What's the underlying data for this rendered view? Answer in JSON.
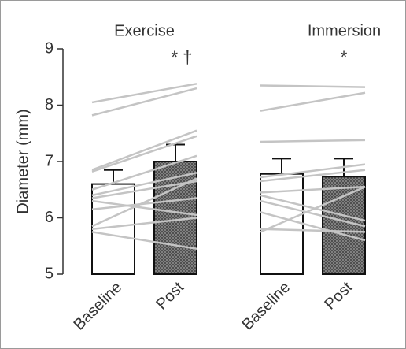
{
  "chart_data": {
    "type": "bar",
    "y_label": "Diameter (mm)",
    "ylim": [
      5,
      9
    ],
    "yticks": [
      5,
      6,
      7,
      8,
      9
    ],
    "groups": [
      "Exercise",
      "Immersion"
    ],
    "categories": [
      "Baseline",
      "Post",
      "Baseline",
      "Post"
    ],
    "values": [
      6.6,
      7.0,
      6.78,
      6.73
    ],
    "errors": [
      0.25,
      0.3,
      0.27,
      0.32
    ],
    "colors": [
      "#ffffff",
      "#8a8a8a",
      "#ffffff",
      "#8a8a8a"
    ],
    "line_color": "#c4c4c4",
    "annotations": [
      null,
      "* †",
      null,
      "*"
    ],
    "individual_lines": [
      [
        [
          8.05,
          8.38
        ],
        [
          7.82,
          8.3
        ],
        [
          6.85,
          7.55
        ],
        [
          6.82,
          7.45
        ],
        [
          6.5,
          7.1
        ],
        [
          6.4,
          6.8
        ],
        [
          6.35,
          6.65
        ],
        [
          6.3,
          6.05
        ],
        [
          6.15,
          6.35
        ],
        [
          5.85,
          6.7
        ],
        [
          5.8,
          6.0
        ],
        [
          5.75,
          5.45
        ]
      ],
      [
        [
          8.35,
          8.32
        ],
        [
          7.9,
          8.22
        ],
        [
          7.35,
          7.38
        ],
        [
          6.72,
          6.95
        ],
        [
          6.65,
          6.85
        ],
        [
          6.45,
          6.55
        ],
        [
          6.4,
          5.95
        ],
        [
          6.3,
          5.85
        ],
        [
          6.1,
          5.6
        ],
        [
          5.8,
          5.75
        ],
        [
          5.75,
          6.55
        ]
      ]
    ]
  }
}
